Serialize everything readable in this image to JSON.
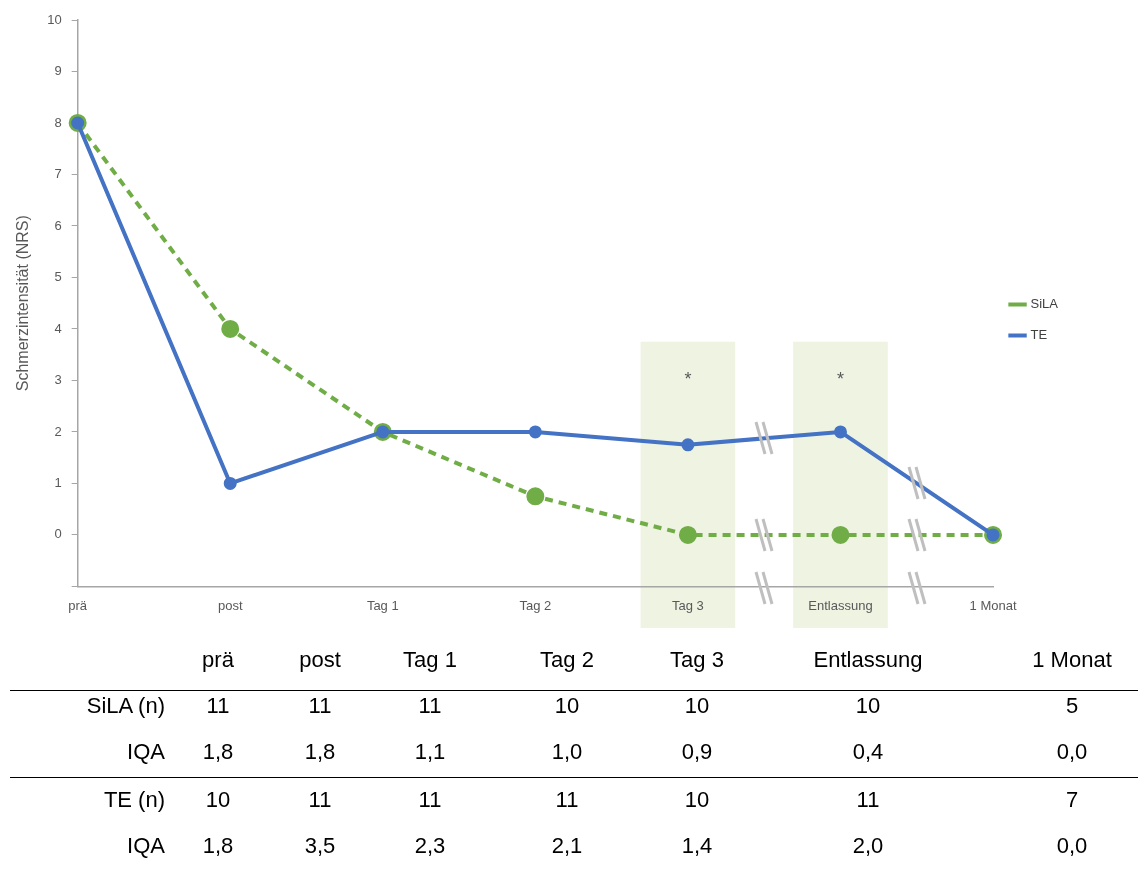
{
  "chart_data": {
    "type": "line",
    "ylabel": "Schmerzintensität (NRS)",
    "categories": [
      "prä",
      "post",
      "Tag 1",
      "Tag 2",
      "Tag 3",
      "Entlassung",
      "1 Monat"
    ],
    "series": [
      {
        "name": "SiLA",
        "color": "#70ad47",
        "line_style": "dashed",
        "values": [
          8,
          4,
          2,
          0.75,
          0,
          0,
          0
        ]
      },
      {
        "name": "TE",
        "color": "#4472c4",
        "line_style": "solid",
        "values": [
          8,
          1,
          2,
          2,
          1.75,
          2,
          0
        ]
      }
    ],
    "ylim": [
      -1,
      10
    ],
    "yticks": [
      {
        "value": -1,
        "label": null
      },
      0,
      1,
      2,
      3,
      4,
      5,
      6,
      7,
      8,
      9,
      10
    ],
    "grid": false,
    "legend": "right",
    "marker": "circle",
    "bands": [
      {
        "axis": "x",
        "from": "Tag 3",
        "to": "Tag 3",
        "label": "*",
        "color": "#eef3e2"
      },
      {
        "axis": "x",
        "from": "Entlassung",
        "to": "Entlassung",
        "label": "*",
        "color": "#eef3e2"
      }
    ],
    "annotations": [
      "SiLA (n)",
      "11",
      "11",
      "11",
      "10",
      "10",
      "10",
      "5",
      "IQA",
      "1,8",
      "1,8",
      "1,1",
      "1,0",
      "0,9",
      "0,4",
      "0,0",
      "TE (n)",
      "10",
      "11",
      "11",
      "11",
      "10",
      "11",
      "7",
      "IQA",
      "1,8",
      "3,5",
      "2,3",
      "2,1",
      "1,4",
      "2,0",
      "0,0"
    ]
  }
}
